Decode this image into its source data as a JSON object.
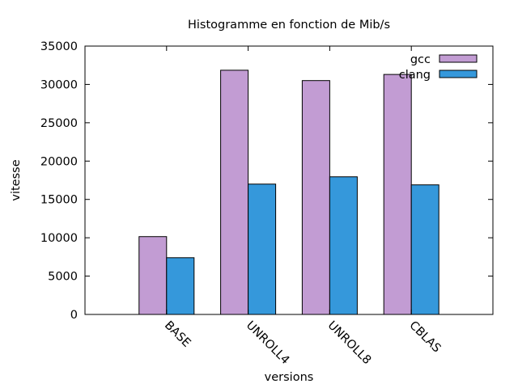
{
  "chart_data": {
    "type": "bar",
    "title": "Histogramme en fonction de Mib/s",
    "xlabel": "versions",
    "ylabel": "vitesse",
    "categories": [
      "BASE",
      "UNROLL4",
      "UNROLL8",
      "CBLAS"
    ],
    "series": [
      {
        "name": "gcc",
        "color": "#c29cd3",
        "values": [
          10150,
          31850,
          30500,
          31300
        ]
      },
      {
        "name": "clang",
        "color": "#3598db",
        "values": [
          7400,
          17000,
          17950,
          16900
        ]
      }
    ],
    "ylim": [
      0,
      35000
    ],
    "yticks": [
      "0",
      "5000",
      "10000",
      "15000",
      "20000",
      "25000",
      "30000",
      "35000"
    ],
    "legend_position": "top-right",
    "grid": false
  }
}
